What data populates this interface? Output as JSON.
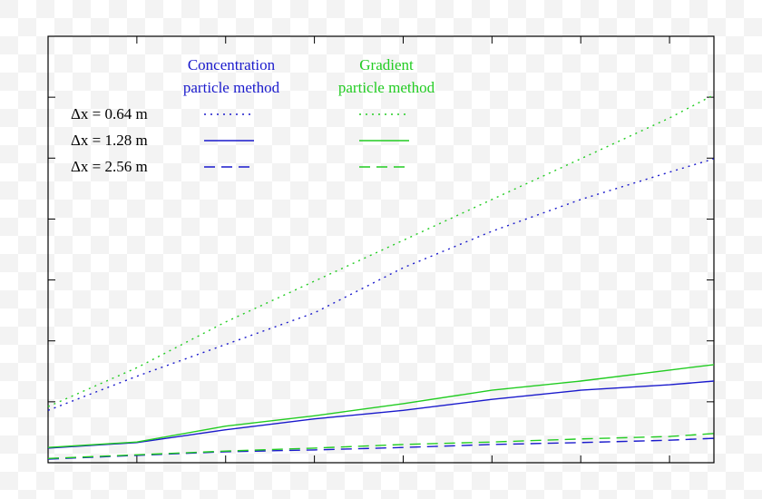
{
  "chart_data": {
    "type": "line",
    "x": [
      0,
      1,
      2,
      3,
      4,
      5,
      6,
      7,
      7.5
    ],
    "xlim": [
      0,
      7.5
    ],
    "ylim": [
      0,
      7
    ],
    "xticks": [
      1,
      2,
      3,
      4,
      5,
      6,
      7
    ],
    "yticks": [
      1,
      2,
      3,
      4,
      5,
      6
    ],
    "legend_rows": [
      "Δx = 0.64 m",
      "Δx = 1.28 m",
      "Δx = 2.56 m"
    ],
    "groups": [
      {
        "name": [
          "Concentration",
          "particle method"
        ],
        "color": "#1a1acc",
        "series": [
          {
            "dash": "dotted",
            "values": [
              0.86,
              1.42,
              1.94,
              2.46,
              3.2,
              3.8,
              4.32,
              4.77,
              4.99
            ]
          },
          {
            "dash": "solid",
            "values": [
              0.24,
              0.33,
              0.54,
              0.72,
              0.86,
              1.04,
              1.19,
              1.28,
              1.34
            ]
          },
          {
            "dash": "dashed",
            "values": [
              0.06,
              0.12,
              0.18,
              0.21,
              0.25,
              0.3,
              0.33,
              0.37,
              0.4
            ]
          }
        ]
      },
      {
        "name": [
          "Gradient",
          "particle method"
        ],
        "color": "#22cc22",
        "series": [
          {
            "dash": "dotted",
            "values": [
              0.92,
              1.56,
              2.31,
              2.98,
              3.65,
              4.32,
              4.99,
              5.66,
              6.04
            ]
          },
          {
            "dash": "solid",
            "values": [
              0.25,
              0.34,
              0.6,
              0.77,
              0.97,
              1.19,
              1.34,
              1.52,
              1.61
            ]
          },
          {
            "dash": "dashed",
            "values": [
              0.07,
              0.13,
              0.19,
              0.24,
              0.3,
              0.34,
              0.39,
              0.43,
              0.48
            ]
          }
        ]
      }
    ]
  }
}
